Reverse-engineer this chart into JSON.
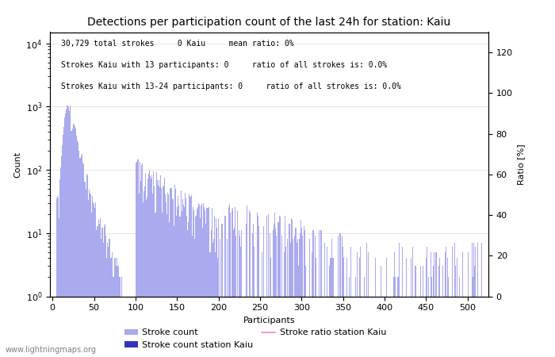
{
  "title": "Detections per participation count of the last 24h for station: Kaiu",
  "xlabel": "Participants",
  "ylabel_left": "Count",
  "ylabel_right": "Ratio [%]",
  "annotation_lines": [
    "30,729 total strokes     0 Kaiu     mean ratio: 0%",
    "Strokes Kaiu with 13 participants: 0     ratio of all strokes is: 0.0%",
    "Strokes Kaiu with 13-24 participants: 0     ratio of all strokes is: 0.0%"
  ],
  "bar_color_light": "#aaaaee",
  "bar_color_dark": "#3333bb",
  "line_color": "#ee88cc",
  "watermark": "www.lightningmaps.org",
  "legend_labels": [
    "Stroke count",
    "Stroke count station Kaiu",
    "Stroke ratio station Kaiu"
  ],
  "xmax": 520,
  "xlim_left": 0,
  "ylim_bottom": 1.0,
  "ylim_top": 15000,
  "right_ylim_bottom": 0,
  "right_ylim_top": 130,
  "right_yticks": [
    0,
    20,
    40,
    60,
    80,
    100,
    120
  ],
  "xticks": [
    0,
    50,
    100,
    150,
    200,
    250,
    300,
    350,
    400,
    450,
    500
  ]
}
